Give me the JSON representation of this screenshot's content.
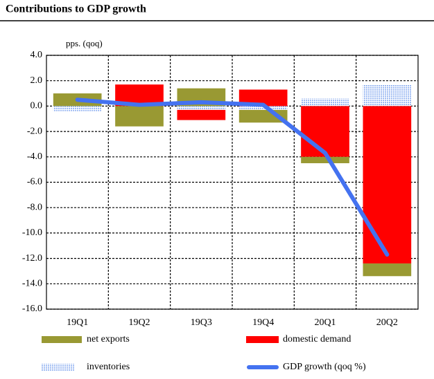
{
  "chart_data": {
    "type": "stacked-bar-line",
    "title": "Contributions to GDP growth",
    "y_label": "pps. (qoq)",
    "categories": [
      "19Q1",
      "19Q2",
      "19Q3",
      "19Q4",
      "20Q1",
      "20Q2"
    ],
    "series": [
      {
        "name": "net exports",
        "color": "#999933",
        "kind": "bar",
        "values": [
          1.0,
          -1.6,
          1.4,
          -1.0,
          -0.5,
          -1.0
        ]
      },
      {
        "name": "domestic demand",
        "color": "#ff0000",
        "kind": "bar",
        "values": [
          0,
          1.7,
          -0.8,
          1.3,
          -4.0,
          -12.4
        ]
      },
      {
        "name": "inventories",
        "color": "#9ab8f2",
        "kind": "bar",
        "values": [
          -0.4,
          0,
          -0.3,
          -0.3,
          0.6,
          1.7
        ]
      },
      {
        "name": "GDP growth (qoq %)",
        "color": "#4472f0",
        "kind": "line",
        "values": [
          0.5,
          0.1,
          0.3,
          0.1,
          -3.7,
          -11.7
        ]
      }
    ],
    "ylim": [
      -16,
      4
    ],
    "yticks": [
      {
        "value": -16,
        "label": "-16.0"
      },
      {
        "value": -14,
        "label": "-14.0"
      },
      {
        "value": -12,
        "label": "-12.0"
      },
      {
        "value": -10,
        "label": "-10.0"
      },
      {
        "value": -8,
        "label": "-8.0"
      },
      {
        "value": -6,
        "label": "-6.0"
      },
      {
        "value": -4,
        "label": "-4.0"
      },
      {
        "value": -2,
        "label": "-2.0"
      },
      {
        "value": 0,
        "label": "0.0"
      },
      {
        "value": 2,
        "label": "2.0"
      },
      {
        "value": 4,
        "label": "4.0"
      }
    ],
    "grid": true
  }
}
